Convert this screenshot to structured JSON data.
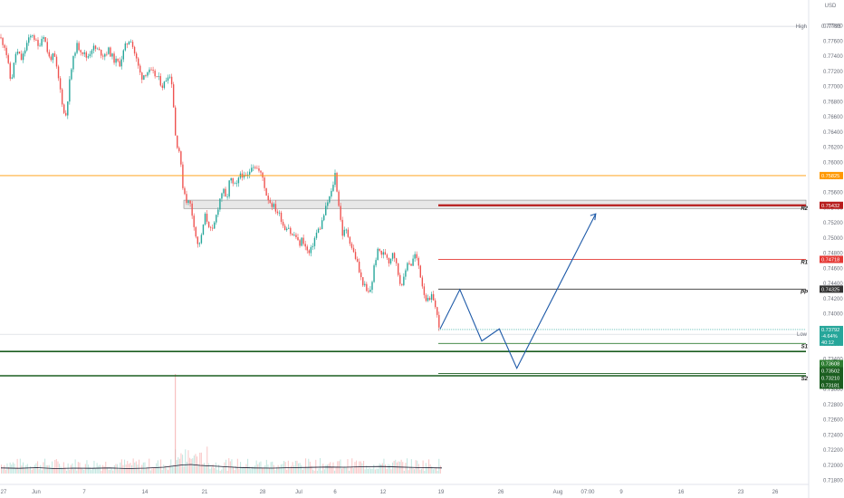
{
  "chart_data": {
    "type": "candlestick",
    "currency": "USD",
    "y_ticks": [
      "0.77800",
      "0.77600",
      "0.77400",
      "0.77200",
      "0.77000",
      "0.76800",
      "0.76600",
      "0.76400",
      "0.76200",
      "0.76000",
      "0.75800",
      "0.75600",
      "0.75400",
      "0.75200",
      "0.75000",
      "0.74800",
      "0.74600",
      "0.74400",
      "0.74200",
      "0.74000",
      "0.73800",
      "0.73600",
      "0.73400",
      "0.73200",
      "0.73000",
      "0.72800",
      "0.72600",
      "0.72400",
      "0.72200",
      "0.72000",
      "0.71800"
    ],
    "x_ticks": [
      "27",
      "Jun",
      "7",
      "14",
      "21",
      "28",
      "Jul",
      "6",
      "12",
      "19",
      "26",
      "Aug",
      "07:00",
      "9",
      "16",
      "23",
      "26"
    ],
    "ylim": [
      0.718,
      0.78
    ],
    "high": {
      "label": "High",
      "value": "0.77795"
    },
    "low": {
      "label": "Low",
      "value": "0.73729"
    },
    "levels": [
      {
        "name": "",
        "value": "0.75825",
        "color": "#ff9800"
      },
      {
        "name": "R2",
        "value": "0.75432",
        "color": "#b71c1c"
      },
      {
        "name": "R1",
        "value": "0.74718",
        "color": "#e53935"
      },
      {
        "name": "PP",
        "value": "0.74325",
        "color": "#333333"
      },
      {
        "name": "S1",
        "value": "0.73608",
        "color": "#2e7d32"
      },
      {
        "name": "",
        "value": "0.73502",
        "color": "#1b5e20"
      },
      {
        "name": "",
        "value": "0.73210",
        "color": "#1b5e20"
      },
      {
        "name": "S2",
        "value": "0.73181",
        "color": "#1b5e20"
      }
    ],
    "last_price": {
      "value": "0.73792",
      "change": "-4.64%",
      "countdown": "40:12",
      "color": "#26a69a"
    },
    "resistance_zone": [
      0.7539,
      0.755
    ],
    "projection_path": [
      {
        "bar": 0,
        "y": 0.738
      },
      {
        "bar": 9,
        "y": 0.7432
      },
      {
        "bar": 19,
        "y": 0.7364
      },
      {
        "bar": 27,
        "y": 0.738
      },
      {
        "bar": 35,
        "y": 0.7328
      },
      {
        "bar": 71,
        "y": 0.7532
      }
    ],
    "price_path": [
      [
        0,
        0.7765
      ],
      [
        6,
        0.7752
      ],
      [
        12,
        0.7705
      ],
      [
        18,
        0.7748
      ],
      [
        24,
        0.7735
      ],
      [
        30,
        0.7758
      ],
      [
        36,
        0.777
      ],
      [
        42,
        0.7752
      ],
      [
        48,
        0.777
      ],
      [
        54,
        0.7738
      ],
      [
        60,
        0.774
      ],
      [
        66,
        0.77
      ],
      [
        72,
        0.7655
      ],
      [
        78,
        0.7718
      ],
      [
        84,
        0.7755
      ],
      [
        90,
        0.7748
      ],
      [
        96,
        0.7738
      ],
      [
        102,
        0.7752
      ],
      [
        108,
        0.7748
      ],
      [
        114,
        0.7742
      ],
      [
        120,
        0.7748
      ],
      [
        126,
        0.7735
      ],
      [
        132,
        0.773
      ],
      [
        138,
        0.7752
      ],
      [
        144,
        0.7765
      ],
      [
        150,
        0.7738
      ],
      [
        156,
        0.7712
      ],
      [
        162,
        0.772
      ],
      [
        168,
        0.7718
      ],
      [
        174,
        0.7712
      ],
      [
        180,
        0.77
      ],
      [
        186,
        0.7718
      ],
      [
        190,
        0.7705
      ],
      [
        194,
        0.763
      ],
      [
        198,
        0.7615
      ],
      [
        202,
        0.7568
      ],
      [
        206,
        0.755
      ],
      [
        210,
        0.7545
      ],
      [
        214,
        0.752
      ],
      [
        218,
        0.749
      ],
      [
        222,
        0.7498
      ],
      [
        226,
        0.753
      ],
      [
        230,
        0.752
      ],
      [
        234,
        0.7505
      ],
      [
        238,
        0.7525
      ],
      [
        242,
        0.7548
      ],
      [
        246,
        0.7565
      ],
      [
        250,
        0.7548
      ],
      [
        254,
        0.758
      ],
      [
        258,
        0.7568
      ],
      [
        262,
        0.757
      ],
      [
        266,
        0.7588
      ],
      [
        270,
        0.7578
      ],
      [
        274,
        0.7582
      ],
      [
        278,
        0.7598
      ],
      [
        282,
        0.7595
      ],
      [
        286,
        0.7588
      ],
      [
        290,
        0.758
      ],
      [
        294,
        0.7558
      ],
      [
        298,
        0.7548
      ],
      [
        302,
        0.7542
      ],
      [
        306,
        0.7535
      ],
      [
        310,
        0.7528
      ],
      [
        314,
        0.7512
      ],
      [
        318,
        0.7518
      ],
      [
        322,
        0.7502
      ],
      [
        326,
        0.7505
      ],
      [
        330,
        0.749
      ],
      [
        334,
        0.75
      ],
      [
        338,
        0.7485
      ],
      [
        342,
        0.7478
      ],
      [
        346,
        0.7495
      ],
      [
        350,
        0.7508
      ],
      [
        354,
        0.7515
      ],
      [
        358,
        0.7532
      ],
      [
        362,
        0.7548
      ],
      [
        366,
        0.756
      ],
      [
        370,
        0.7585
      ],
      [
        374,
        0.7545
      ],
      [
        378,
        0.7505
      ],
      [
        382,
        0.751
      ],
      [
        386,
        0.7498
      ],
      [
        390,
        0.7482
      ],
      [
        394,
        0.747
      ],
      [
        398,
        0.7448
      ],
      [
        402,
        0.7438
      ],
      [
        406,
        0.7425
      ],
      [
        410,
        0.7435
      ],
      [
        414,
        0.747
      ],
      [
        418,
        0.7485
      ],
      [
        422,
        0.7478
      ],
      [
        426,
        0.748
      ],
      [
        430,
        0.7468
      ],
      [
        434,
        0.7485
      ],
      [
        438,
        0.7462
      ],
      [
        442,
        0.744
      ],
      [
        446,
        0.7445
      ],
      [
        450,
        0.747
      ],
      [
        454,
        0.7465
      ],
      [
        458,
        0.7478
      ],
      [
        462,
        0.7465
      ],
      [
        466,
        0.744
      ],
      [
        470,
        0.742
      ],
      [
        474,
        0.7415
      ],
      [
        478,
        0.7425
      ],
      [
        482,
        0.74
      ],
      [
        486,
        0.738
      ]
    ],
    "volume_path": [
      [
        0,
        0.62
      ],
      [
        20,
        0.58
      ],
      [
        40,
        0.65
      ],
      [
        60,
        0.55
      ],
      [
        80,
        0.6
      ],
      [
        100,
        0.58
      ],
      [
        120,
        0.62
      ],
      [
        140,
        0.55
      ],
      [
        160,
        0.6
      ],
      [
        180,
        0.7
      ],
      [
        200,
        0.95
      ],
      [
        210,
        1.0
      ],
      [
        220,
        0.9
      ],
      [
        240,
        0.8
      ],
      [
        260,
        0.68
      ],
      [
        280,
        0.62
      ],
      [
        300,
        0.6
      ],
      [
        320,
        0.65
      ],
      [
        340,
        0.68
      ],
      [
        360,
        0.72
      ],
      [
        380,
        0.7
      ],
      [
        400,
        0.75
      ],
      [
        420,
        0.78
      ],
      [
        440,
        0.72
      ],
      [
        460,
        0.66
      ],
      [
        487,
        0.62
      ]
    ]
  }
}
